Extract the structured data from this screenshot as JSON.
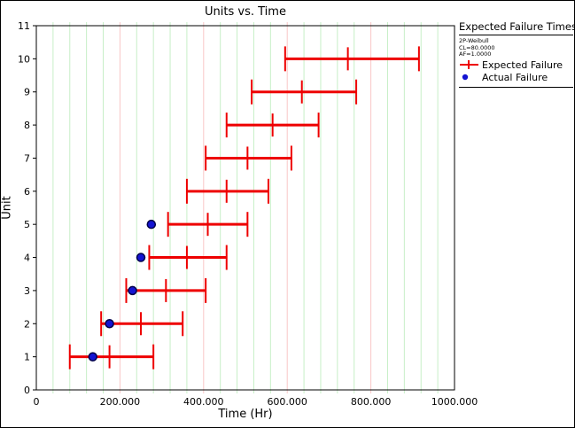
{
  "window": {
    "background": "#ffffff",
    "border_color": "#000000"
  },
  "chart_data": {
    "type": "scatter",
    "title": "Units vs. Time",
    "xlabel": "Time (Hr)",
    "ylabel": "Unit",
    "xlim": [
      0,
      1000
    ],
    "ylim": [
      0,
      11
    ],
    "x_ticks": [
      0,
      200,
      400,
      600,
      800,
      1000
    ],
    "x_tick_labels": [
      "0",
      "200.000",
      "400.000",
      "600.000",
      "800.000",
      "1000.000"
    ],
    "y_ticks": [
      0,
      1,
      2,
      3,
      4,
      5,
      6,
      7,
      8,
      9,
      10,
      11
    ],
    "grid": {
      "orientation": "vertical-only",
      "minor_step": 40,
      "major_step": 200,
      "minor_color": "#c7efc7",
      "major_color": "#f9c6c6"
    },
    "series": [
      {
        "name": "Expected Failure",
        "marker": "errorbar",
        "color": "#ee0000",
        "points": [
          {
            "unit": 1,
            "low": 80,
            "mid": 175,
            "high": 280
          },
          {
            "unit": 2,
            "low": 155,
            "mid": 250,
            "high": 350
          },
          {
            "unit": 3,
            "low": 215,
            "mid": 310,
            "high": 405
          },
          {
            "unit": 4,
            "low": 270,
            "mid": 360,
            "high": 455
          },
          {
            "unit": 5,
            "low": 315,
            "mid": 410,
            "high": 505
          },
          {
            "unit": 6,
            "low": 360,
            "mid": 455,
            "high": 555
          },
          {
            "unit": 7,
            "low": 405,
            "mid": 505,
            "high": 610
          },
          {
            "unit": 8,
            "low": 455,
            "mid": 565,
            "high": 675
          },
          {
            "unit": 9,
            "low": 515,
            "mid": 635,
            "high": 765
          },
          {
            "unit": 10,
            "low": 595,
            "mid": 745,
            "high": 915
          }
        ]
      },
      {
        "name": "Actual Failure",
        "marker": "dot",
        "color": "#1414d2",
        "edge": "#00004a",
        "points": [
          {
            "unit": 1,
            "x": 135
          },
          {
            "unit": 2,
            "x": 175
          },
          {
            "unit": 3,
            "x": 230
          },
          {
            "unit": 4,
            "x": 250
          },
          {
            "unit": 5,
            "x": 275
          }
        ]
      }
    ]
  },
  "legend": {
    "title": "Expected Failure Times",
    "params": [
      "2P-Weibull",
      "CL=80.0000",
      "AF=1.0000"
    ],
    "entries": [
      {
        "label": "Expected Failure",
        "marker": "errorbar-icon",
        "color": "#ee0000"
      },
      {
        "label": "Actual Failure",
        "marker": "dot-icon",
        "color": "#1414d2"
      }
    ]
  }
}
